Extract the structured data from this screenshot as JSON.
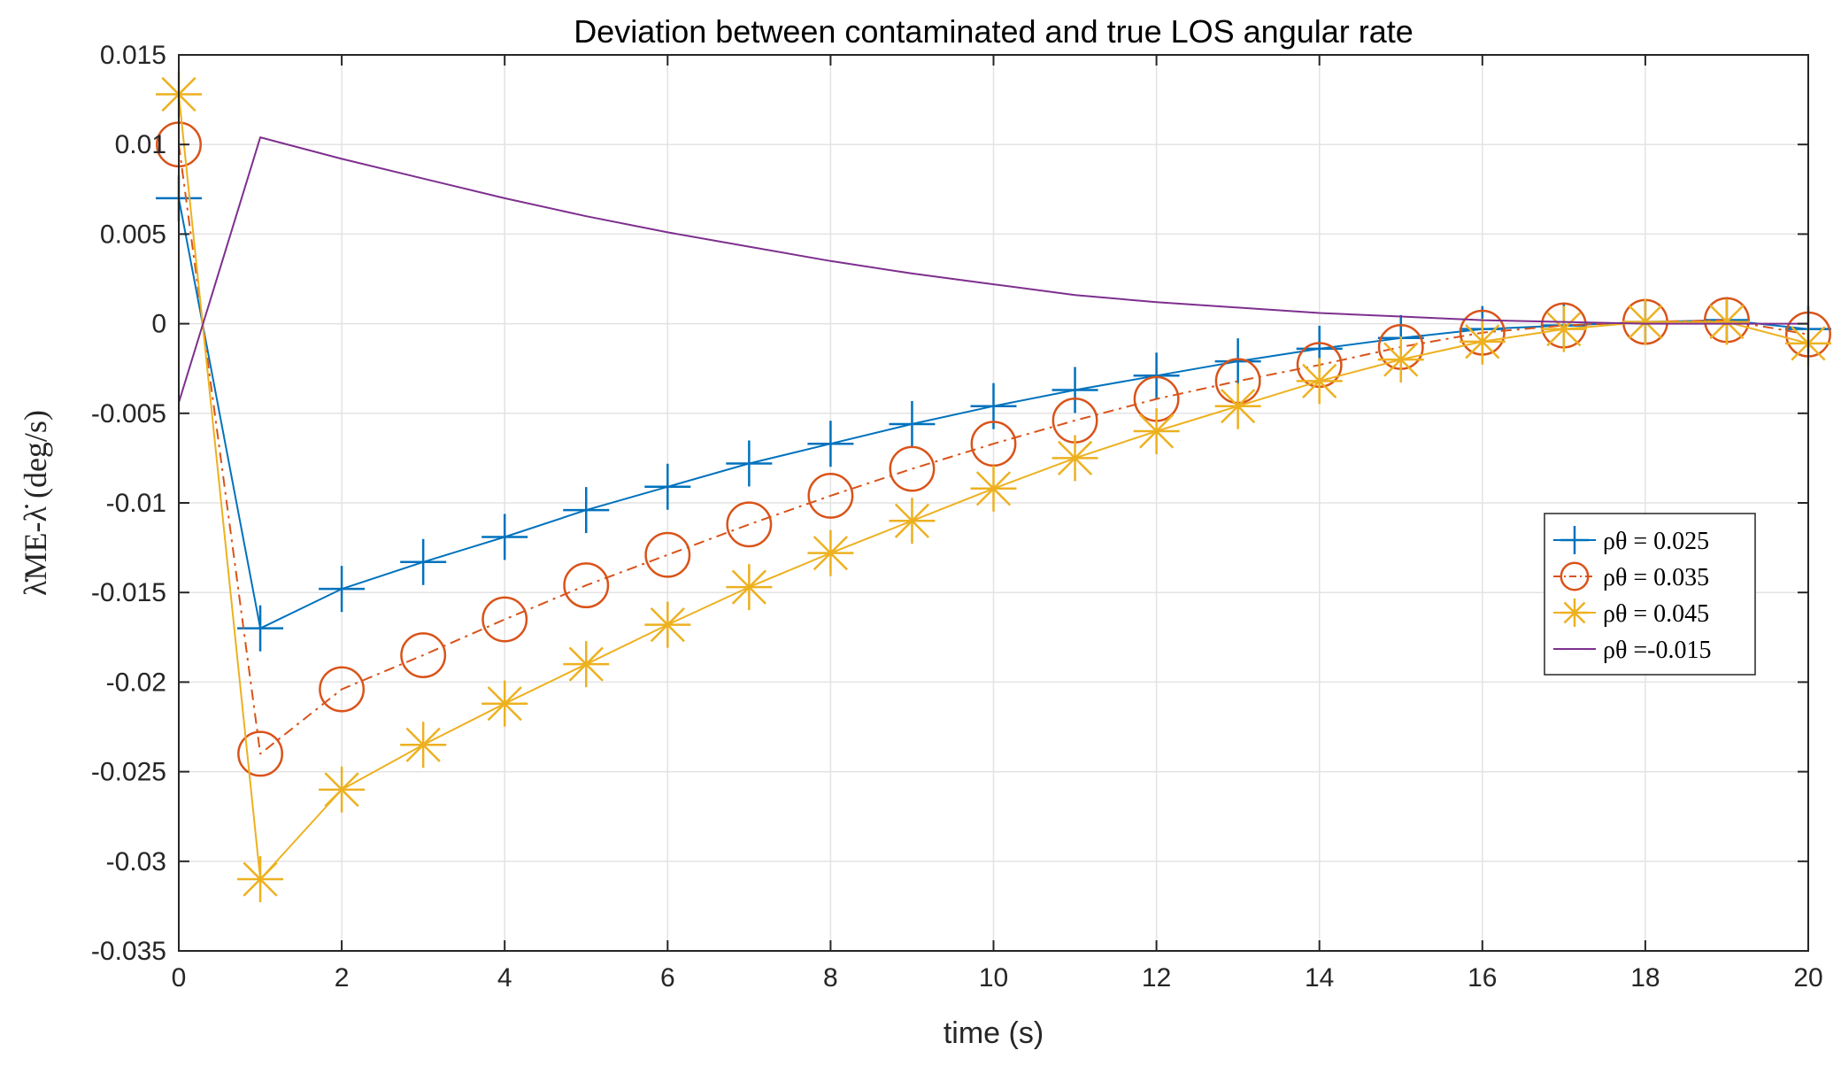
{
  "chart_data": {
    "type": "line",
    "title": "Deviation between contaminated and true LOS angular rate",
    "xlabel": "time (s)",
    "ylabel": "λ̇ME-λ̇ (deg/s)",
    "xlim": [
      0,
      20
    ],
    "ylim": [
      -0.035,
      0.015
    ],
    "xticks": [
      0,
      2,
      4,
      6,
      8,
      10,
      12,
      14,
      16,
      18,
      20
    ],
    "xtick_labels": [
      "0",
      "2",
      "4",
      "6",
      "8",
      "10",
      "12",
      "14",
      "16",
      "18",
      "20"
    ],
    "yticks": [
      0.015,
      0.01,
      0.005,
      0,
      -0.005,
      -0.01,
      -0.015,
      -0.02,
      -0.025,
      -0.03,
      -0.035
    ],
    "ytick_labels": [
      "0.015",
      "0.01",
      "0.005",
      "0",
      "-0.005",
      "-0.01",
      "-0.015",
      "-0.02",
      "-0.025",
      "-0.03",
      "-0.035"
    ],
    "grid": true,
    "legend_position": "right",
    "x": [
      0,
      1,
      2,
      3,
      4,
      5,
      6,
      7,
      8,
      9,
      10,
      11,
      12,
      13,
      14,
      15,
      16,
      17,
      18,
      19,
      20
    ],
    "series": [
      {
        "name": "ρθ = 0.025",
        "legend_label": "ρθ = 0.025",
        "color": "#0072BD",
        "marker": "plus",
        "line": "solid",
        "values": [
          0.007,
          -0.017,
          -0.0148,
          -0.0133,
          -0.0119,
          -0.0104,
          -0.0091,
          -0.0078,
          -0.0067,
          -0.0056,
          -0.0046,
          -0.0037,
          -0.0029,
          -0.0021,
          -0.0014,
          -0.0008,
          -0.0003,
          -0.0001,
          0.0001,
          0.0002,
          -0.0003
        ]
      },
      {
        "name": "ρθ = 0.035",
        "legend_label": "ρθ = 0.035",
        "color": "#D95319",
        "marker": "circle",
        "line": "dashdot",
        "values": [
          0.01,
          -0.024,
          -0.0204,
          -0.0185,
          -0.0165,
          -0.0146,
          -0.0129,
          -0.0112,
          -0.0096,
          -0.0081,
          -0.0067,
          -0.0054,
          -0.0042,
          -0.0032,
          -0.0023,
          -0.0013,
          -0.0005,
          -0.0001,
          0.0001,
          0.0002,
          -0.0006
        ]
      },
      {
        "name": "ρθ = 0.045",
        "legend_label": "ρθ = 0.045",
        "color": "#EDB120",
        "marker": "asterisk",
        "line": "solid",
        "values": [
          0.0128,
          -0.031,
          -0.026,
          -0.0235,
          -0.0212,
          -0.019,
          -0.0168,
          -0.0147,
          -0.0128,
          -0.011,
          -0.0092,
          -0.0075,
          -0.006,
          -0.0046,
          -0.0032,
          -0.002,
          -0.001,
          -0.0003,
          0.0001,
          0.0001,
          -0.0011
        ]
      },
      {
        "name": "ρθ =-0.015",
        "legend_label": "ρθ =-0.015",
        "color": "#7E2F8E",
        "marker": "none",
        "line": "solid",
        "values": [
          -0.0044,
          0.0104,
          0.0092,
          0.0081,
          0.007,
          0.006,
          0.0051,
          0.0043,
          0.0035,
          0.0028,
          0.0022,
          0.0016,
          0.0012,
          0.0009,
          0.0006,
          0.0004,
          0.0002,
          0.0001,
          0.0,
          0.0,
          0.0
        ]
      }
    ]
  }
}
